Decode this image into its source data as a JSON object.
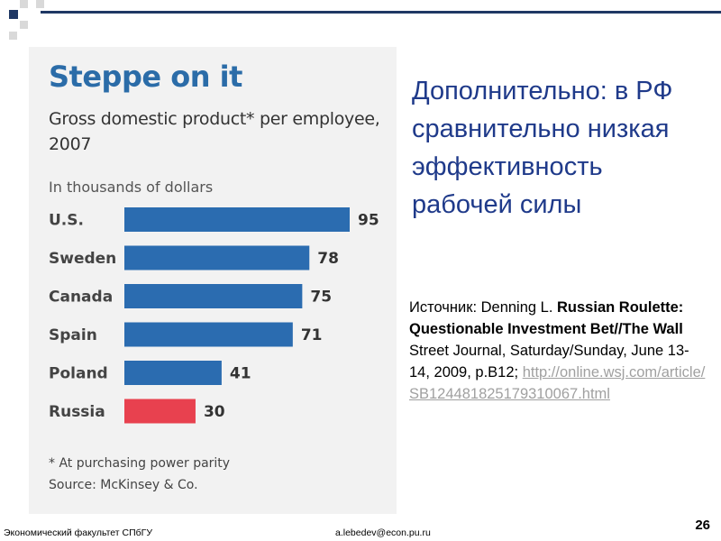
{
  "slide": {
    "headline": "Дополнительно: в РФ сравнительно низкая эффективность рабочей силы",
    "source": {
      "prefix": "Источник: Denning L. ",
      "title_bold": "Russian Roulette: Questionable Investment Bet//The Wall",
      "rest": " Street Journal, Saturday/Sunday, June 13-14, 2009, p.B12; ",
      "link": "http://online.wsj.com/article/SB124481825179310067.html"
    },
    "footer_left": "Экономический факультет СПбГУ",
    "footer_email": "a.lebedev@econ.pu.ru",
    "page_number": "26"
  },
  "colors": {
    "accent": "#1f3864",
    "headline_text": "#1f3a8a",
    "chart_title": "#2b6ca8",
    "bar_default": "#2b6cb0",
    "bar_highlight": "#e8414f",
    "panel_bg": "#f2f2f2"
  },
  "chart_data": {
    "type": "bar",
    "orientation": "horizontal",
    "title": "Steppe on it",
    "subtitle": "Gross domestic product* per employee, 2007",
    "unit_note": "In thousands of dollars",
    "categories": [
      "U.S.",
      "Sweden",
      "Canada",
      "Spain",
      "Poland",
      "Russia"
    ],
    "values": [
      95,
      78,
      75,
      71,
      41,
      30
    ],
    "highlight": [
      "Russia"
    ],
    "xlim": [
      0,
      95
    ],
    "grid": false,
    "footnote": "* At purchasing power parity",
    "source": "Source: McKinsey & Co."
  }
}
